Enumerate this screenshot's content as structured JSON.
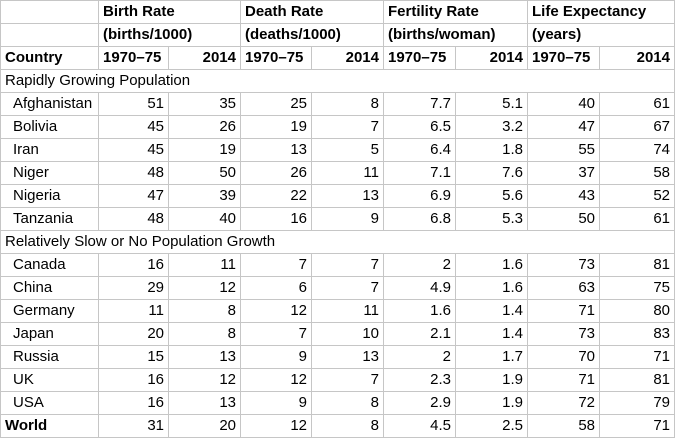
{
  "header": {
    "country_label": "Country",
    "groups": [
      {
        "line1": "Birth Rate",
        "line2": "(births/1000)"
      },
      {
        "line1": "Death Rate",
        "line2": "(deaths/1000)"
      },
      {
        "line1": "Fertility Rate",
        "line2": "(births/woman)"
      },
      {
        "line1": "Life Expectancy",
        "line2": "(years)"
      }
    ],
    "period1": "1970–75",
    "period2": "2014"
  },
  "sections": [
    {
      "title": "Rapidly Growing Population",
      "rows": [
        {
          "country": "Afghanistan",
          "values": [
            "51",
            "35",
            "25",
            "8",
            "7.7",
            "5.1",
            "40",
            "61"
          ]
        },
        {
          "country": "Bolivia",
          "values": [
            "45",
            "26",
            "19",
            "7",
            "6.5",
            "3.2",
            "47",
            "67"
          ]
        },
        {
          "country": "Iran",
          "values": [
            "45",
            "19",
            "13",
            "5",
            "6.4",
            "1.8",
            "55",
            "74"
          ]
        },
        {
          "country": "Niger",
          "values": [
            "48",
            "50",
            "26",
            "11",
            "7.1",
            "7.6",
            "37",
            "58"
          ]
        },
        {
          "country": "Nigeria",
          "values": [
            "47",
            "39",
            "22",
            "13",
            "6.9",
            "5.6",
            "43",
            "52"
          ]
        },
        {
          "country": "Tanzania",
          "values": [
            "48",
            "40",
            "16",
            "9",
            "6.8",
            "5.3",
            "50",
            "61"
          ]
        }
      ]
    },
    {
      "title": "Relatively Slow or No Population Growth",
      "rows": [
        {
          "country": "Canada",
          "values": [
            "16",
            "11",
            "7",
            "7",
            "2",
            "1.6",
            "73",
            "81"
          ]
        },
        {
          "country": "China",
          "values": [
            "29",
            "12",
            "6",
            "7",
            "4.9",
            "1.6",
            "63",
            "75"
          ]
        },
        {
          "country": "Germany",
          "values": [
            "11",
            "8",
            "12",
            "11",
            "1.6",
            "1.4",
            "71",
            "80"
          ]
        },
        {
          "country": "Japan",
          "values": [
            "20",
            "8",
            "7",
            "10",
            "2.1",
            "1.4",
            "73",
            "83"
          ]
        },
        {
          "country": "Russia",
          "values": [
            "15",
            "13",
            "9",
            "13",
            "2",
            "1.7",
            "70",
            "71"
          ]
        },
        {
          "country": "UK",
          "values": [
            "16",
            "12",
            "12",
            "7",
            "2.3",
            "1.9",
            "71",
            "81"
          ]
        },
        {
          "country": "USA",
          "values": [
            "16",
            "13",
            "9",
            "8",
            "2.9",
            "1.9",
            "72",
            "79"
          ]
        }
      ]
    }
  ],
  "world": {
    "country": "World",
    "values": [
      "31",
      "20",
      "12",
      "8",
      "4.5",
      "2.5",
      "58",
      "71"
    ]
  }
}
